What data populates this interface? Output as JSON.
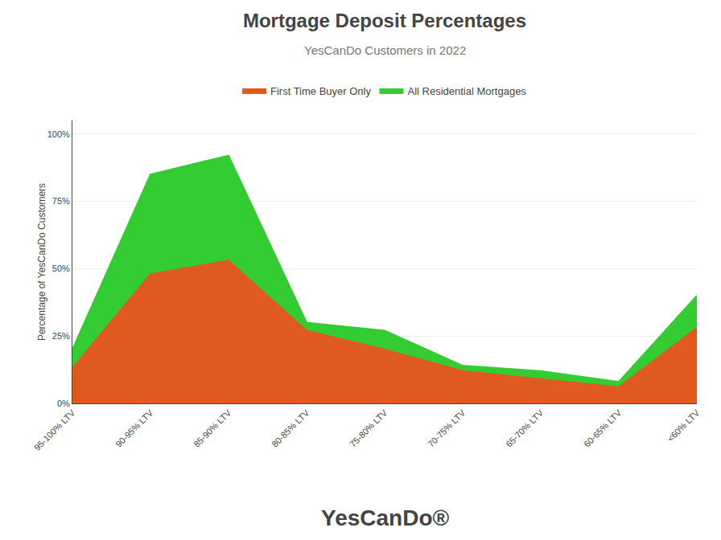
{
  "chart_data": {
    "type": "area",
    "title": "Mortgage Deposit Percentages",
    "subtitle": "YesCanDo Customers in 2022",
    "ylabel": "Percentage of YesCanDo Customers",
    "annotations": [
      "YesCanDo®"
    ],
    "categories": [
      "95-100% LTV",
      "90-95% LTV",
      "85-90% LTV",
      "80-85% LTV",
      "75-80% LTV",
      "70-75% LTV",
      "65-70% LTV",
      "60-65% LTV",
      "<60% LTV"
    ],
    "series": [
      {
        "name": "First Time Buyer Only",
        "color": "#E05A20",
        "values": [
          13,
          48,
          53,
          27,
          20,
          12,
          9,
          6,
          28
        ]
      },
      {
        "name": "All Residential Mortgages",
        "color": "#33CC33",
        "values": [
          20,
          85,
          92,
          30,
          27,
          14,
          12,
          8,
          40
        ]
      }
    ],
    "stacked": false,
    "ylim": [
      0,
      105
    ],
    "yticks": [
      {
        "value": 0,
        "label": "0%"
      },
      {
        "value": 25,
        "label": "25%"
      },
      {
        "value": 50,
        "label": "50%"
      },
      {
        "value": 75,
        "label": "75%"
      },
      {
        "value": 100,
        "label": "100%"
      }
    ],
    "grid": true,
    "legend": "top"
  }
}
